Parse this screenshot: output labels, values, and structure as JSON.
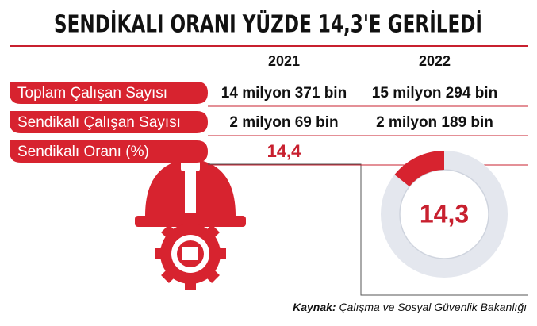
{
  "title": "SENDİKALI ORANI YÜZDE 14,3'E GERİLEDİ",
  "table": {
    "header": [
      "2021",
      "2022"
    ],
    "rows": [
      [
        "Toplam Çalışan Sayısı",
        "14 milyon 371 bin",
        "15 milyon 294 bin"
      ],
      [
        "Sendikalı Çalışan Sayısı",
        "2 milyon 69 bin",
        "2 milyon 189 bin"
      ],
      [
        "Sendikalı Oranı (%)",
        "14,4"
      ]
    ]
  },
  "donut": {
    "values": [
      14.3
    ],
    "value_labels": [
      "14,3"
    ],
    "color": "#d7232f"
  },
  "source": {
    "label": "Kaynak:",
    "text": "Çalışma ve Sosyal Güvenlik Bakanlığı"
  }
}
